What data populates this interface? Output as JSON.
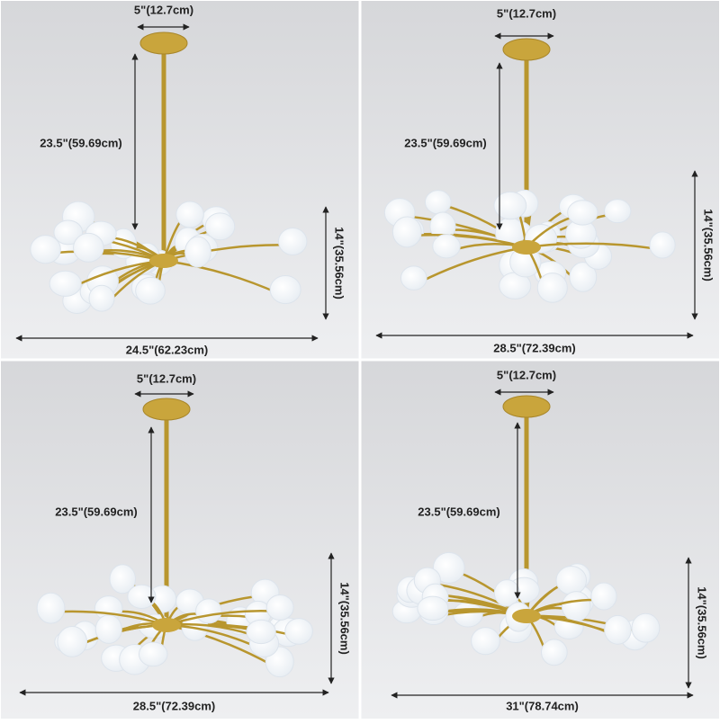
{
  "panels": [
    {
      "canopy": "5\"(12.7cm)",
      "drop": "23.5\"(59.69cm)",
      "height": "14\"(35.56cm)",
      "width": "24.5\"(62.23cm)"
    },
    {
      "canopy": "5\"(12.7cm)",
      "drop": "23.5\"(59.69cm)",
      "height": "14\"(35.56cm)",
      "width": "28.5\"(72.39cm)"
    },
    {
      "canopy": "5\"(12.7cm)",
      "drop": "23.5\"(59.69cm)",
      "height": "14\"(35.56cm)",
      "width": "28.5\"(72.39cm)"
    },
    {
      "canopy": "5\"(12.7cm)",
      "drop": "23.5\"(59.69cm)",
      "height": "14\"(35.56cm)",
      "width": "31\"(78.74cm)"
    }
  ]
}
